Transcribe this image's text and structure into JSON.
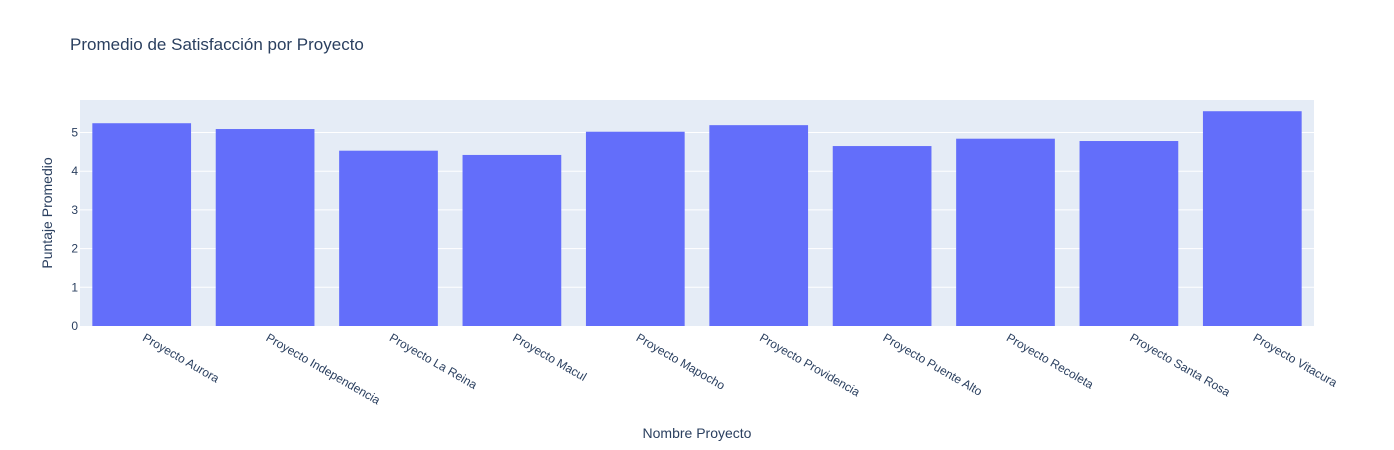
{
  "chart_data": {
    "type": "bar",
    "title": "Promedio de Satisfacción por Proyecto",
    "xlabel": "Nombre Proyecto",
    "ylabel": "Puntaje Promedio",
    "categories": [
      "Proyecto Aurora",
      "Proyecto Independencia",
      "Proyecto La Reina",
      "Proyecto Macul",
      "Proyecto Mapocho",
      "Proyecto Providencia",
      "Proyecto Puente Alto",
      "Proyecto Recoleta",
      "Proyecto Santa Rosa",
      "Proyecto Vitacura"
    ],
    "values": [
      5.24,
      5.09,
      4.53,
      4.42,
      5.02,
      5.19,
      4.65,
      4.84,
      4.78,
      5.55
    ],
    "ylim": [
      0,
      5.84
    ],
    "yticks": [
      0,
      1,
      2,
      3,
      4,
      5
    ],
    "grid": true,
    "colors": {
      "bar": "#636efa",
      "plot_bg": "#e5ecf6",
      "grid": "#ffffff",
      "text": "#2a3f5f"
    }
  }
}
